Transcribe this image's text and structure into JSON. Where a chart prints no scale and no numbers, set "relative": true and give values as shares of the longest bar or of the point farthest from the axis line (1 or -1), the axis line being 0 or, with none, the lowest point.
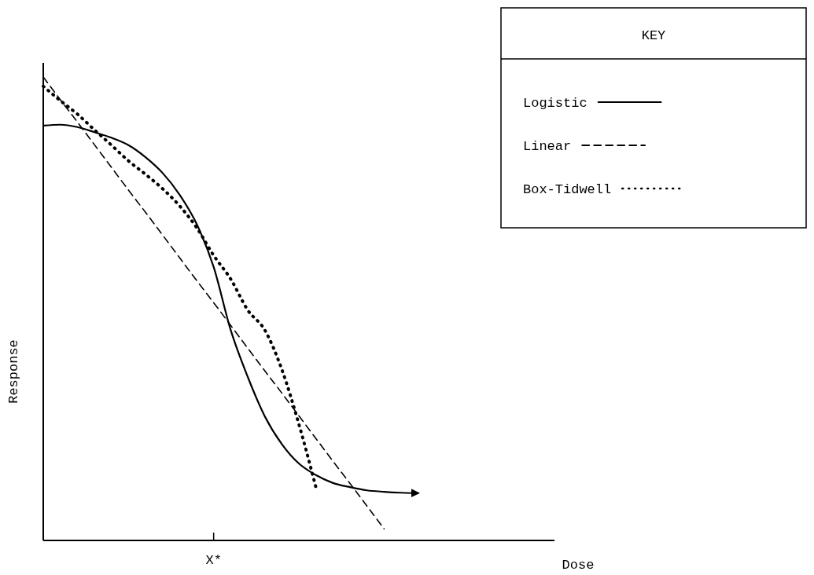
{
  "chart_data": {
    "type": "line",
    "relative": true,
    "xlabel": "Dose",
    "ylabel": "Response",
    "legend_title": "KEY",
    "legend": "top right",
    "grid": false,
    "categories": [
      null,
      null,
      null,
      null,
      null,
      null,
      null,
      null,
      null,
      null,
      null,
      null,
      null,
      null,
      null,
      null,
      null,
      null,
      null,
      null,
      null,
      null,
      null,
      null,
      null,
      null,
      null,
      null,
      null,
      null,
      null
    ],
    "annotations": [
      "X*"
    ],
    "series": [
      {
        "name": "Logistic",
        "color": "#000000",
        "line_style": "solid",
        "values": [
          0.895,
          0.897,
          0.892,
          0.881,
          0.869,
          0.853,
          0.827,
          0.793,
          0.746,
          0.683,
          0.59,
          0.454,
          0.353,
          0.268,
          0.208,
          0.166,
          0.141,
          0.124,
          0.115,
          0.108,
          0.105,
          0.103,
          0.102,
          null,
          null,
          null,
          null,
          null,
          null,
          null,
          null
        ]
      },
      {
        "name": "Linear",
        "color": "#000000",
        "line_style": "dashed",
        "values": [
          1,
          0.951,
          0.903,
          0.854,
          0.805,
          0.756,
          0.708,
          0.659,
          0.61,
          0.561,
          0.513,
          0.464,
          0.415,
          0.366,
          0.318,
          0.269,
          0.22,
          0.171,
          0.123,
          0.074,
          0.025,
          null,
          null,
          null,
          null,
          null,
          null,
          null,
          null,
          null,
          null
        ]
      },
      {
        "name": "Box-Tidwell",
        "color": "#000000",
        "line_style": "dotted",
        "values": [
          0.98,
          0.949,
          0.92,
          0.886,
          0.853,
          0.819,
          0.79,
          0.759,
          0.722,
          0.675,
          0.615,
          0.564,
          0.497,
          0.454,
          0.369,
          0.251,
          0.115,
          null,
          null,
          null,
          null,
          null,
          null,
          null,
          null,
          null,
          null,
          null,
          null,
          null,
          null
        ]
      }
    ]
  }
}
